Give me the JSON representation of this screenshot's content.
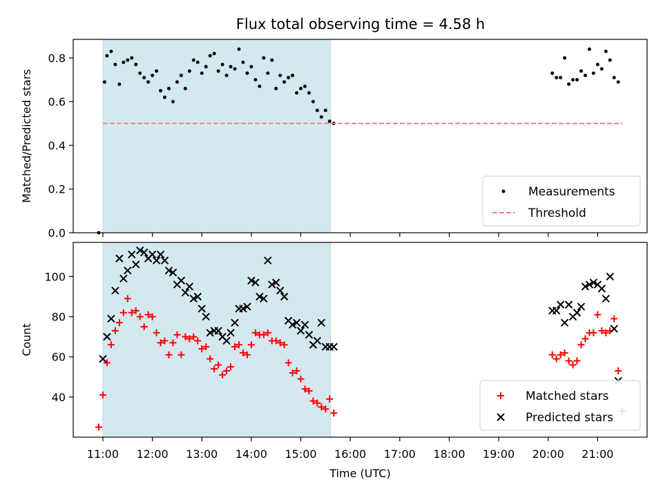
{
  "title": "Flux total observing time = 4.58 h",
  "chart_data": [
    {
      "type": "scatter",
      "ylabel": "Matched/Predicted stars",
      "ylim": [
        0,
        0.885
      ],
      "yticks": [
        0.0,
        0.2,
        0.4,
        0.6,
        0.8
      ],
      "ytick_labels": [
        "0.0",
        "0.2",
        "0.4",
        "0.6",
        "0.8"
      ],
      "shaded_region": {
        "x_start": "11:00",
        "x_end": "15:36",
        "color": "#d4e9ef"
      },
      "threshold": {
        "value": 0.5,
        "x_start": "11:00",
        "x_end": "21:30",
        "color": "#f08080"
      },
      "legend": {
        "position": "lower-right",
        "entries": [
          {
            "label": "Measurements",
            "marker": "dot",
            "color": "#000000"
          },
          {
            "label": "Threshold",
            "marker": "dashed-line",
            "color": "#f08080"
          }
        ]
      },
      "series": [
        {
          "name": "Measurements",
          "color": "#000000",
          "marker": "dot",
          "x": [
            "10:55",
            "11:02",
            "11:05",
            "11:10",
            "11:15",
            "11:20",
            "11:25",
            "11:30",
            "11:35",
            "11:40",
            "11:45",
            "11:50",
            "11:55",
            "12:00",
            "12:05",
            "12:10",
            "12:15",
            "12:20",
            "12:25",
            "12:30",
            "12:35",
            "12:40",
            "12:45",
            "12:50",
            "12:55",
            "13:00",
            "13:05",
            "13:10",
            "13:15",
            "13:20",
            "13:25",
            "13:30",
            "13:35",
            "13:40",
            "13:45",
            "13:50",
            "13:55",
            "14:00",
            "14:05",
            "14:10",
            "14:15",
            "14:20",
            "14:25",
            "14:30",
            "14:35",
            "14:40",
            "14:45",
            "14:50",
            "14:55",
            "15:00",
            "15:05",
            "15:10",
            "15:15",
            "15:20",
            "15:25",
            "15:30",
            "15:35",
            "15:40",
            "20:05",
            "20:10",
            "20:15",
            "20:20",
            "20:25",
            "20:30",
            "20:35",
            "20:40",
            "20:45",
            "20:50",
            "20:55",
            "21:00",
            "21:05",
            "21:10",
            "21:15",
            "21:20",
            "21:25"
          ],
          "y": [
            0.0,
            0.69,
            0.81,
            0.83,
            0.77,
            0.68,
            0.78,
            0.79,
            0.8,
            0.77,
            0.73,
            0.71,
            0.69,
            0.72,
            0.74,
            0.65,
            0.62,
            0.66,
            0.6,
            0.69,
            0.72,
            0.66,
            0.74,
            0.79,
            0.78,
            0.73,
            0.76,
            0.81,
            0.82,
            0.74,
            0.77,
            0.72,
            0.76,
            0.75,
            0.84,
            0.78,
            0.73,
            0.76,
            0.7,
            0.67,
            0.8,
            0.73,
            0.79,
            0.66,
            0.72,
            0.69,
            0.71,
            0.72,
            0.64,
            0.66,
            0.67,
            0.64,
            0.6,
            0.56,
            0.53,
            0.56,
            0.51,
            0.5,
            0.73,
            0.71,
            0.71,
            0.8,
            0.68,
            0.7,
            0.7,
            0.74,
            0.72,
            0.84,
            0.73,
            0.77,
            0.75,
            0.83,
            0.79,
            0.71,
            0.69
          ]
        },
        {
          "name": "Threshold",
          "color": "#f08080",
          "style": "dashed",
          "x": [
            "11:00",
            "21:30"
          ],
          "y": [
            0.5,
            0.5
          ]
        }
      ]
    },
    {
      "type": "scatter",
      "xlabel": "Time (UTC)",
      "ylabel": "Count",
      "ylim": [
        20,
        117
      ],
      "yticks": [
        40,
        60,
        80,
        100
      ],
      "ytick_labels": [
        "40",
        "60",
        "80",
        "100"
      ],
      "xticks": [
        "11:00",
        "12:00",
        "13:00",
        "14:00",
        "15:00",
        "16:00",
        "17:00",
        "18:00",
        "19:00",
        "20:00",
        "21:00"
      ],
      "shaded_region": {
        "x_start": "11:00",
        "x_end": "15:36",
        "color": "#d4e9ef"
      },
      "legend": {
        "position": "lower-right",
        "entries": [
          {
            "label": "Matched stars",
            "marker": "plus",
            "color": "#ff0000"
          },
          {
            "label": "Predicted stars",
            "marker": "x",
            "color": "#000000"
          }
        ]
      },
      "series": [
        {
          "name": "Matched stars",
          "color": "#ff0000",
          "marker": "plus",
          "x": [
            "10:55",
            "11:00",
            "11:05",
            "11:10",
            "11:15",
            "11:20",
            "11:25",
            "11:30",
            "11:35",
            "11:40",
            "11:45",
            "11:50",
            "11:55",
            "12:00",
            "12:05",
            "12:10",
            "12:15",
            "12:20",
            "12:25",
            "12:30",
            "12:35",
            "12:40",
            "12:45",
            "12:50",
            "12:55",
            "13:00",
            "13:05",
            "13:10",
            "13:15",
            "13:20",
            "13:25",
            "13:30",
            "13:35",
            "13:40",
            "13:45",
            "13:50",
            "13:55",
            "14:00",
            "14:05",
            "14:10",
            "14:15",
            "14:20",
            "14:25",
            "14:30",
            "14:35",
            "14:40",
            "14:45",
            "14:50",
            "14:55",
            "15:00",
            "15:05",
            "15:10",
            "15:15",
            "15:20",
            "15:25",
            "15:30",
            "15:35",
            "15:40",
            "20:05",
            "20:10",
            "20:15",
            "20:20",
            "20:25",
            "20:30",
            "20:35",
            "20:40",
            "20:45",
            "20:50",
            "20:55",
            "21:00",
            "21:05",
            "21:10",
            "21:15",
            "21:20",
            "21:25",
            "21:30"
          ],
          "y": [
            25,
            41,
            57,
            66,
            73,
            77,
            82,
            89,
            82,
            83,
            80,
            75,
            81,
            80,
            72,
            67,
            68,
            61,
            67,
            71,
            61,
            70,
            69,
            70,
            68,
            64,
            65,
            59,
            54,
            56,
            51,
            53,
            55,
            65,
            66,
            62,
            61,
            66,
            72,
            71,
            71,
            72,
            68,
            68,
            67,
            66,
            57,
            52,
            53,
            49,
            44,
            43,
            38,
            37,
            35,
            34,
            39,
            32,
            61,
            59,
            61,
            62,
            58,
            56,
            58,
            66,
            69,
            72,
            72,
            81,
            73,
            72,
            73,
            79,
            53,
            33
          ]
        },
        {
          "name": "Predicted stars",
          "color": "#000000",
          "marker": "x",
          "x": [
            "11:00",
            "11:05",
            "11:10",
            "11:15",
            "11:20",
            "11:25",
            "11:30",
            "11:35",
            "11:40",
            "11:45",
            "11:50",
            "11:55",
            "12:00",
            "12:05",
            "12:10",
            "12:15",
            "12:20",
            "12:25",
            "12:30",
            "12:35",
            "12:40",
            "12:45",
            "12:50",
            "12:55",
            "13:00",
            "13:05",
            "13:10",
            "13:15",
            "13:20",
            "13:25",
            "13:30",
            "13:35",
            "13:40",
            "13:45",
            "13:50",
            "13:55",
            "14:00",
            "14:05",
            "14:10",
            "14:15",
            "14:20",
            "14:25",
            "14:30",
            "14:35",
            "14:40",
            "14:45",
            "14:50",
            "14:55",
            "15:00",
            "15:05",
            "15:10",
            "15:15",
            "15:20",
            "15:25",
            "15:30",
            "15:35",
            "15:40",
            "20:05",
            "20:10",
            "20:15",
            "20:20",
            "20:25",
            "20:30",
            "20:35",
            "20:40",
            "20:45",
            "20:50",
            "20:55",
            "21:00",
            "21:05",
            "21:10",
            "21:15",
            "21:20",
            "21:25"
          ],
          "y": [
            59,
            70,
            79,
            93,
            109,
            99,
            103,
            111,
            106,
            113,
            112,
            109,
            111,
            108,
            111,
            108,
            103,
            102,
            96,
            98,
            92,
            95,
            89,
            90,
            84,
            80,
            72,
            73,
            73,
            70,
            68,
            72,
            77,
            84,
            84,
            85,
            98,
            97,
            90,
            89,
            108,
            96,
            97,
            93,
            90,
            78,
            76,
            77,
            73,
            76,
            71,
            66,
            68,
            77,
            65,
            65,
            65,
            83,
            83,
            86,
            77,
            86,
            80,
            82,
            85,
            95,
            96,
            97,
            96,
            94,
            89,
            100,
            74,
            48
          ]
        }
      ]
    }
  ]
}
